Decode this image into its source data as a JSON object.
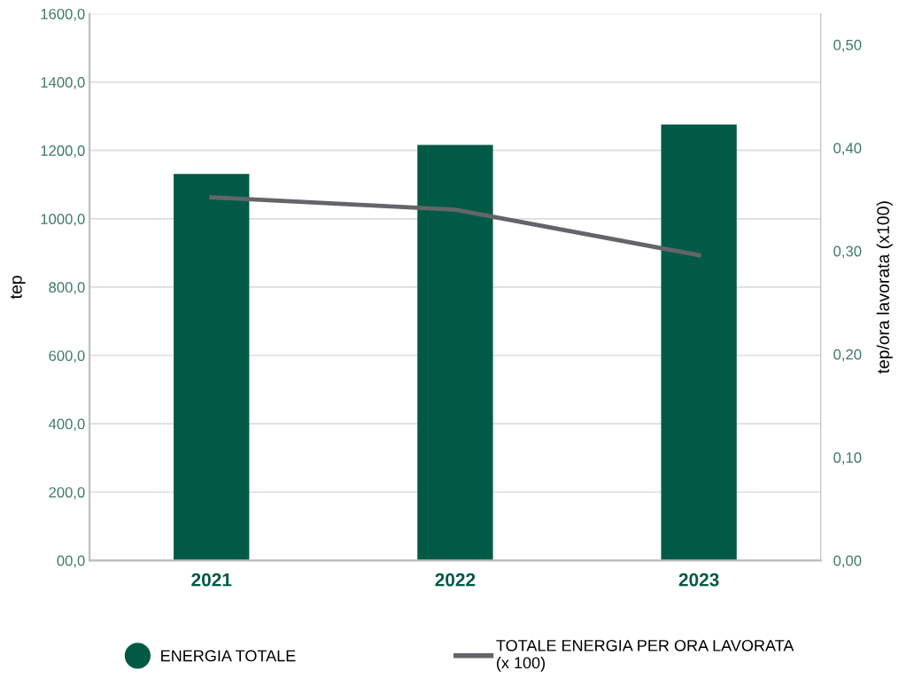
{
  "chart_data": {
    "type": "bar",
    "categories": [
      "2021",
      "2022",
      "2023"
    ],
    "ylabel": "tep",
    "y2label": "tep/ora lavorata (x100)",
    "series": [
      {
        "name": "ENERGIA TOTALE",
        "color": "#005a46",
        "values": [
          1131,
          1216,
          1276
        ]
      },
      {
        "name": "TOTALE ENERGIA PER ORA LAVORATA\n(x 100)",
        "type": "line",
        "axis": "y2",
        "color": "#636569",
        "values": [
          0.352,
          0.34,
          0.296
        ]
      }
    ],
    "ylim": [
      0,
      1600
    ],
    "yticks": [
      {
        "value": 0,
        "label": "00,0"
      },
      {
        "value": 200,
        "label": "200,0"
      },
      {
        "value": 400,
        "label": "400,0"
      },
      {
        "value": 600,
        "label": "600,0"
      },
      {
        "value": 800,
        "label": "800,0"
      },
      {
        "value": 1000,
        "label": "1000,0"
      },
      {
        "value": 1200,
        "label": "1200,0"
      },
      {
        "value": 1400,
        "label": "1400,0"
      },
      {
        "value": 1600,
        "label": "1600,0"
      }
    ],
    "y2lim": [
      0,
      0.53
    ],
    "y2ticks": [
      {
        "value": 0,
        "label": "0,00"
      },
      {
        "value": 0.1,
        "label": "0,10"
      },
      {
        "value": 0.2,
        "label": "0,20"
      },
      {
        "value": 0.3,
        "label": "0,30"
      },
      {
        "value": 0.4,
        "label": "0,40"
      },
      {
        "value": 0.5,
        "label": "0,50"
      }
    ],
    "grid": "y",
    "legend": "bottom",
    "marker": "none",
    "line_style": "solid"
  }
}
